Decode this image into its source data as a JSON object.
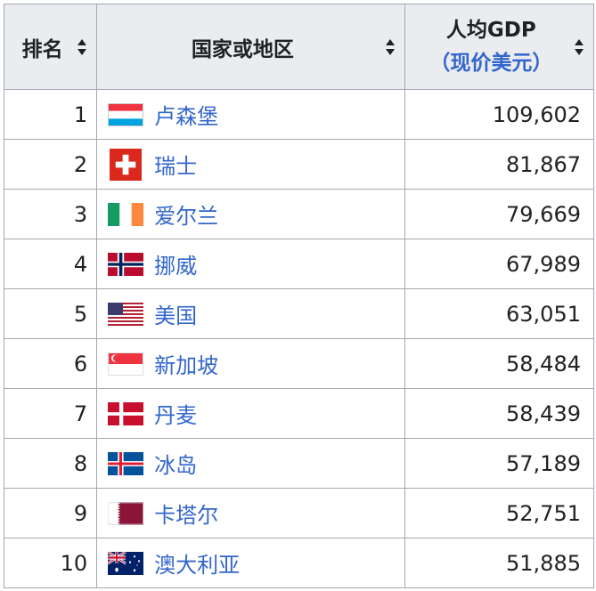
{
  "table": {
    "headers": {
      "rank": "排名",
      "country": "国家或地区",
      "gdp_line1": "人均GDP",
      "gdp_line2": "（现价美元）"
    },
    "rows": [
      {
        "rank": "1",
        "country": "卢森堡",
        "gdp": "109,602",
        "flag": "luxembourg-flag-icon"
      },
      {
        "rank": "2",
        "country": "瑞士",
        "gdp": "81,867",
        "flag": "switzerland-flag-icon"
      },
      {
        "rank": "3",
        "country": "爱尔兰",
        "gdp": "79,669",
        "flag": "ireland-flag-icon"
      },
      {
        "rank": "4",
        "country": "挪威",
        "gdp": "67,989",
        "flag": "norway-flag-icon"
      },
      {
        "rank": "5",
        "country": "美国",
        "gdp": "63,051",
        "flag": "usa-flag-icon"
      },
      {
        "rank": "6",
        "country": "新加坡",
        "gdp": "58,484",
        "flag": "singapore-flag-icon"
      },
      {
        "rank": "7",
        "country": "丹麦",
        "gdp": "58,439",
        "flag": "denmark-flag-icon"
      },
      {
        "rank": "8",
        "country": "冰岛",
        "gdp": "57,189",
        "flag": "iceland-flag-icon"
      },
      {
        "rank": "9",
        "country": "卡塔尔",
        "gdp": "52,751",
        "flag": "qatar-flag-icon"
      },
      {
        "rank": "10",
        "country": "澳大利亚",
        "gdp": "51,885",
        "flag": "australia-flag-icon"
      }
    ]
  },
  "colors": {
    "header_bg": "#eaecf0",
    "border": "#a2a9b1",
    "link": "#3366cc",
    "text": "#202122"
  }
}
